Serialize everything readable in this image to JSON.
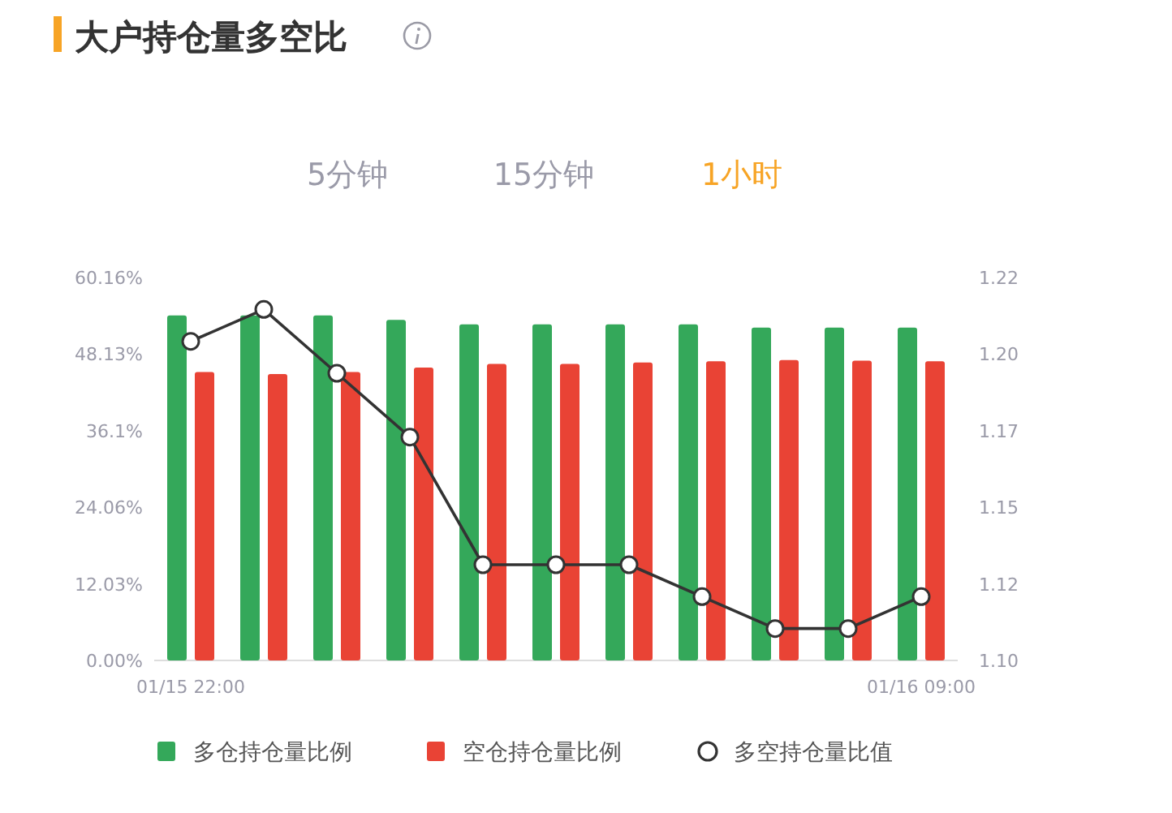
{
  "chart_data": {
    "type": "bar",
    "title": "大户持仓量多空比",
    "annotations": [
      "5分钟",
      "15分钟",
      "1小时"
    ],
    "categories": [
      "01/15 22:00",
      null,
      null,
      null,
      null,
      null,
      null,
      null,
      null,
      null,
      "01/16 09:00"
    ],
    "series": [
      {
        "name": "多仓持仓量比例",
        "color": "#34a85a",
        "values": [
          54.2,
          54.2,
          54.2,
          53.5,
          52.8,
          52.8,
          52.8,
          52.8,
          52.3,
          52.3,
          52.3
        ]
      },
      {
        "name": "空仓持仓量比例",
        "color": "#e94335",
        "values": [
          45.3,
          45.0,
          45.3,
          46.0,
          46.6,
          46.6,
          46.8,
          47.0,
          47.2,
          47.1,
          47.0
        ]
      },
      {
        "name": "多空持仓量比值",
        "type": "line",
        "axis": "y2",
        "color": "#333333",
        "marker": "circle",
        "values": [
          1.2,
          1.21,
          1.19,
          1.17,
          1.13,
          1.13,
          1.13,
          1.12,
          1.11,
          1.11,
          1.12
        ]
      }
    ],
    "ylim": [
      0,
      60.16
    ],
    "yticks": [
      {
        "value": 0,
        "label": "0.00%"
      },
      {
        "value": 12.03,
        "label": "12.03%"
      },
      {
        "value": 24.06,
        "label": "24.06%"
      },
      {
        "value": 36.1,
        "label": "36.1%"
      },
      {
        "value": 48.13,
        "label": "48.13%"
      },
      {
        "value": 60.16,
        "label": "60.16%"
      }
    ],
    "y2lim": [
      1.1,
      1.22
    ],
    "y2ticks": [
      {
        "value": 1.1,
        "label": "1.10"
      },
      {
        "value": 1.124,
        "label": "1.12"
      },
      {
        "value": 1.148,
        "label": "1.15"
      },
      {
        "value": 1.172,
        "label": "1.17"
      },
      {
        "value": 1.196,
        "label": "1.20"
      },
      {
        "value": 1.22,
        "label": "1.22"
      }
    ],
    "legend": "bottom"
  }
}
